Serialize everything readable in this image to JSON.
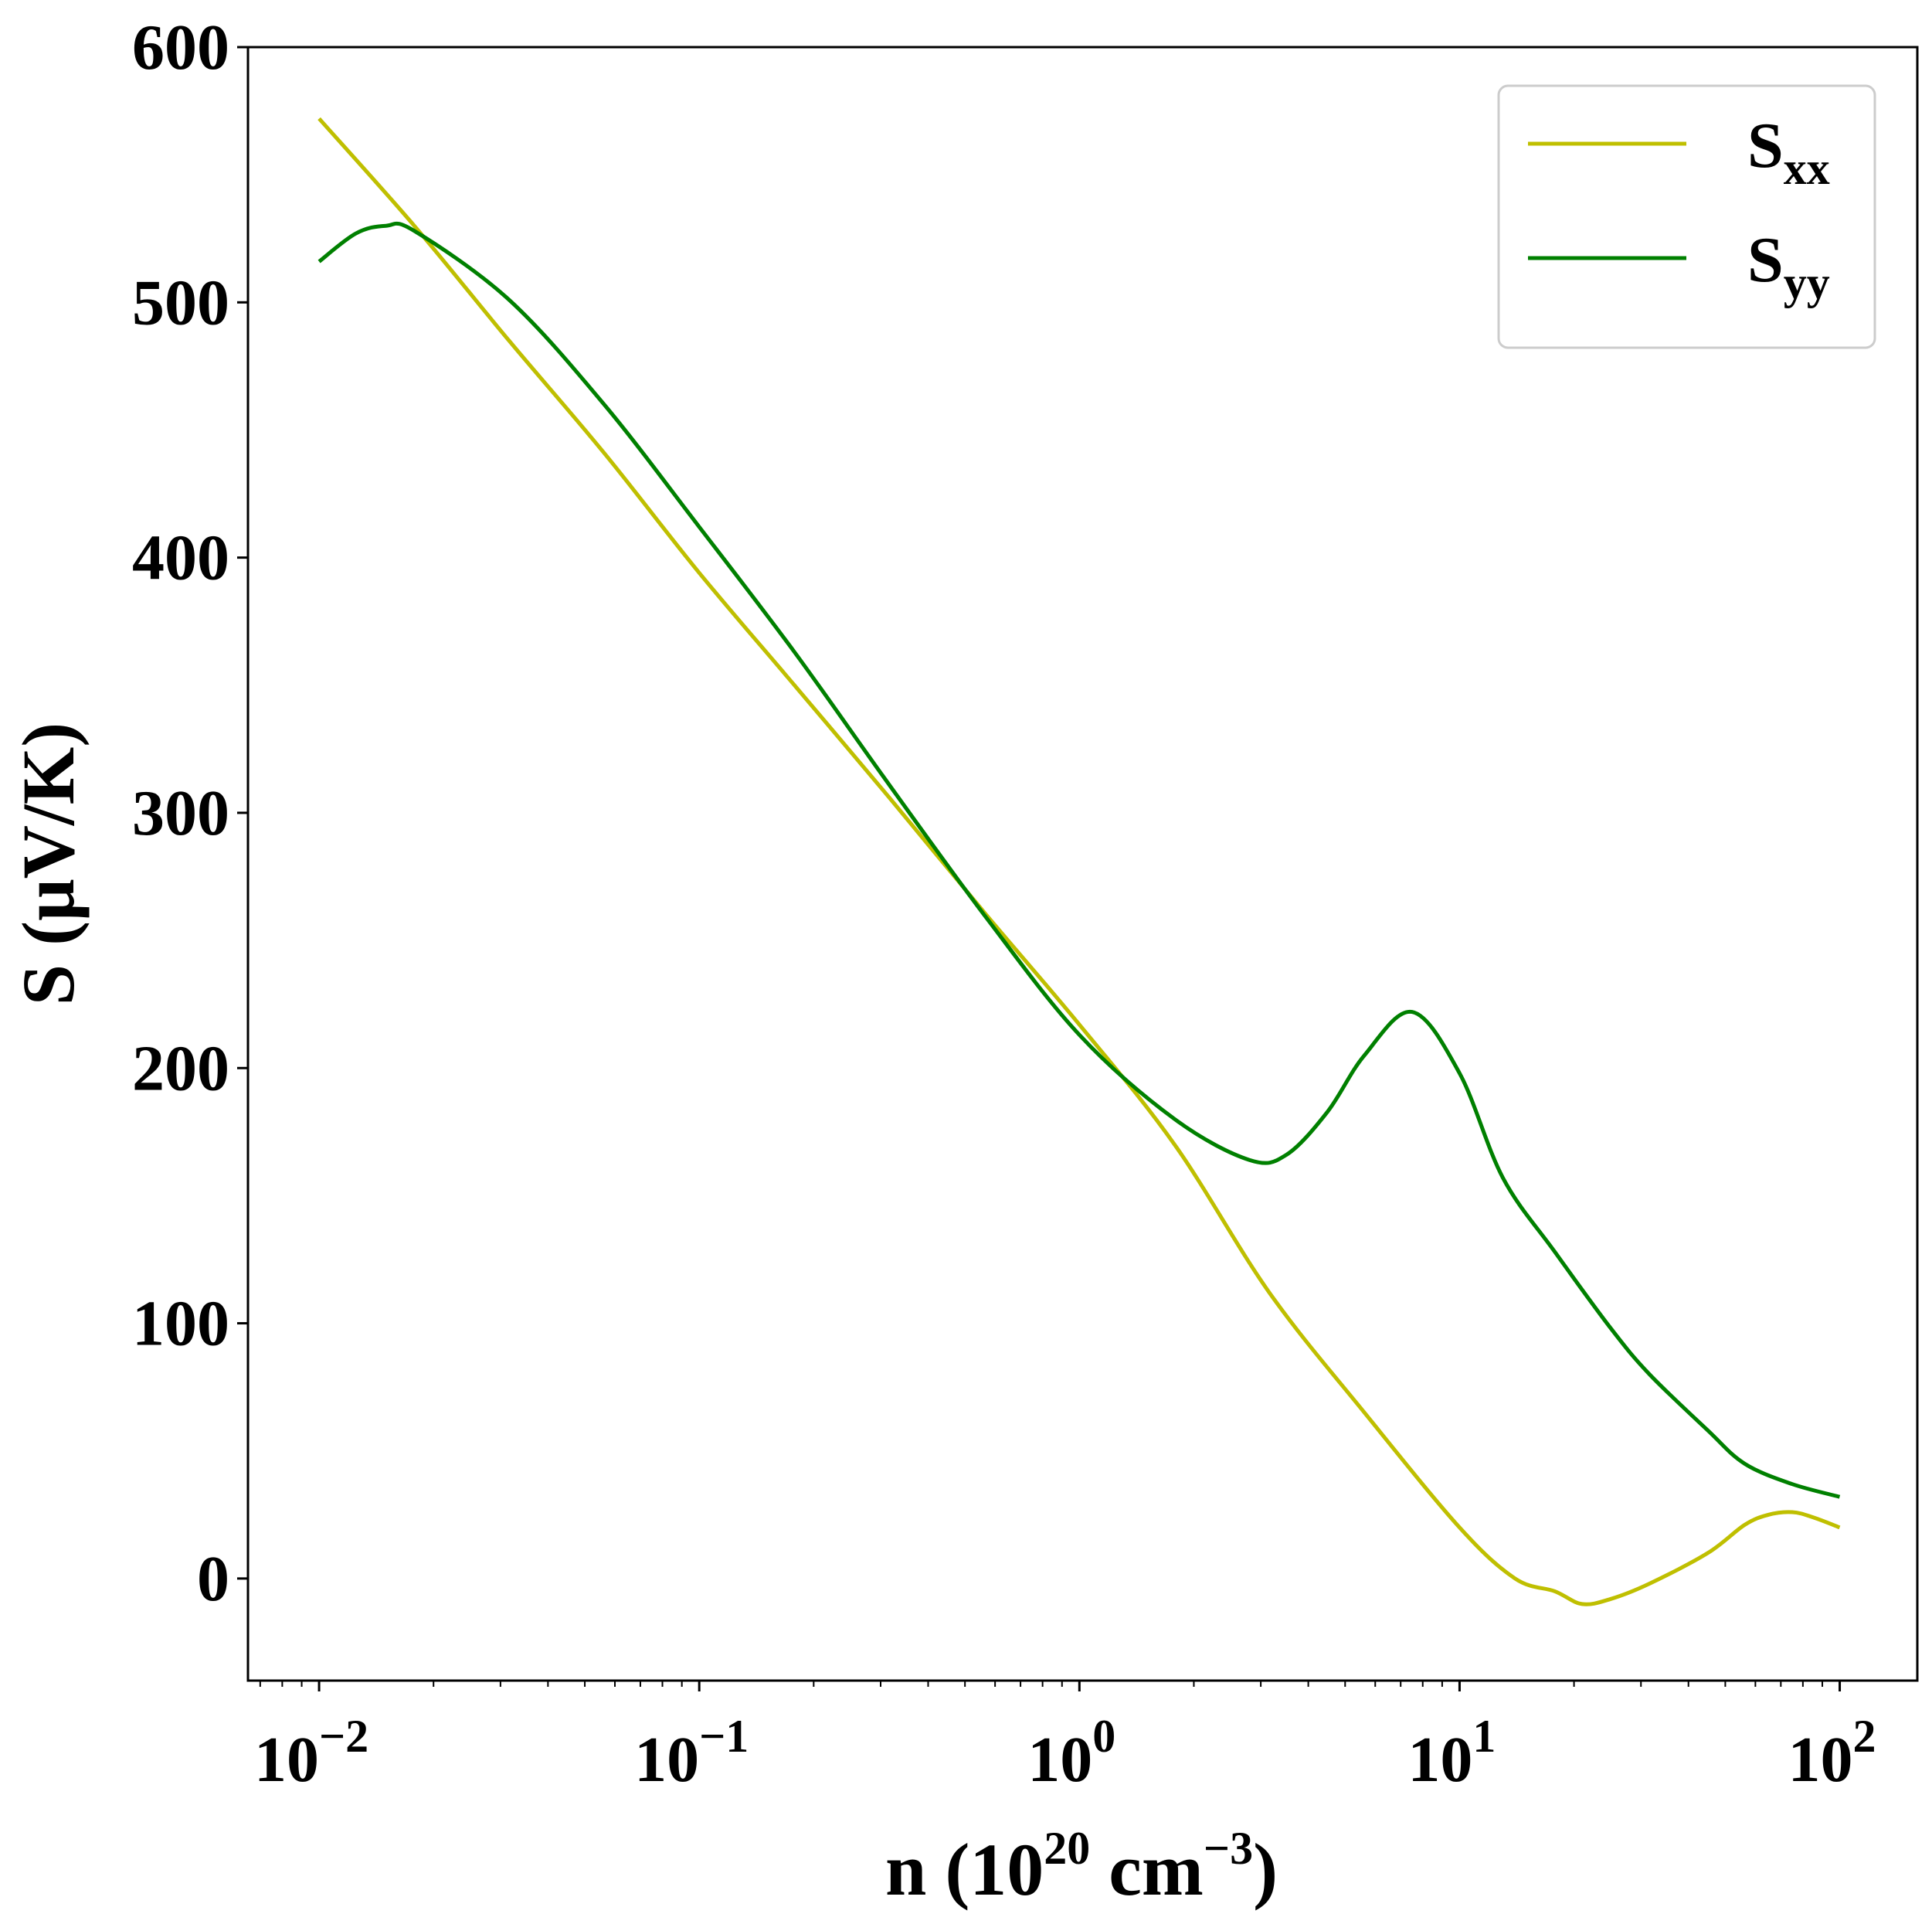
{
  "chart_data": {
    "type": "line",
    "title": "",
    "xlabel": {
      "base": "n (10",
      "sup1": "20",
      "mid": " cm",
      "sup2": "−3",
      "end": ")"
    },
    "ylabel": "S (μV/K)",
    "xscale": "log",
    "xlim": [
      0.0065,
      160
    ],
    "ylim": [
      -40,
      600
    ],
    "yticks": [
      0,
      100,
      200,
      300,
      400,
      500,
      600
    ],
    "xticks": [
      {
        "value": 0.01,
        "base": "10",
        "exp": "−2"
      },
      {
        "value": 0.1,
        "base": "10",
        "exp": "−1"
      },
      {
        "value": 1,
        "base": "10",
        "exp": "0"
      },
      {
        "value": 10,
        "base": "10",
        "exp": "1"
      },
      {
        "value": 100,
        "base": "10",
        "exp": "2"
      }
    ],
    "legend_position": "top-right",
    "series": [
      {
        "name": "S",
        "sub": "xx",
        "color": "#bfbf00",
        "x": [
          0.01,
          0.0178,
          0.0316,
          0.0562,
          0.1,
          0.178,
          0.316,
          0.562,
          1,
          1.78,
          3.16,
          5.62,
          10,
          14,
          17.8,
          21,
          25,
          31.6,
          45,
          56.2,
          65,
          75,
          85,
          100
        ],
        "y": [
          572,
          530,
          485,
          441,
          394,
          350,
          306,
          261,
          217,
          170,
          112,
          65,
          20,
          0,
          -5,
          -10,
          -8,
          -2,
          10,
          21,
          25,
          26,
          24,
          20
        ]
      },
      {
        "name": "S",
        "sub": "yy",
        "color": "#008000",
        "x": [
          0.01,
          0.0125,
          0.015,
          0.0178,
          0.0316,
          0.0562,
          0.1,
          0.178,
          0.316,
          0.562,
          1,
          1.78,
          2.8,
          3.5,
          4.5,
          5.62,
          7.5,
          10,
          13,
          17.8,
          25,
          31.6,
          45,
          56.2,
          75,
          100
        ],
        "y": [
          516,
          527,
          530,
          528,
          501,
          460,
          412,
          363,
          311,
          260,
          213,
          180,
          164,
          166,
          183,
          205,
          222,
          198,
          157,
          128,
          98,
          80,
          58,
          45,
          37,
          32
        ]
      }
    ]
  }
}
